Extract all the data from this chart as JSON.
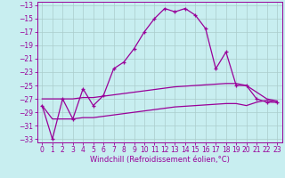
{
  "x": [
    0,
    1,
    2,
    3,
    4,
    5,
    6,
    7,
    8,
    9,
    10,
    11,
    12,
    13,
    14,
    15,
    16,
    17,
    18,
    19,
    20,
    21,
    22,
    23
  ],
  "main_line": [
    -28,
    -33,
    -27,
    -30,
    -25.5,
    -28,
    -26.5,
    -22.5,
    -21.5,
    -19.5,
    -17,
    -15,
    -13.5,
    -14,
    -13.5,
    -14.5,
    -16.5,
    -22.5,
    -20,
    -25,
    -25,
    -27,
    -27.5,
    -27.5
  ],
  "line2": [
    -27,
    -27,
    -27,
    -27,
    -26.8,
    -26.8,
    -26.6,
    -26.4,
    -26.2,
    -26.0,
    -25.8,
    -25.6,
    -25.4,
    -25.2,
    -25.1,
    -25.0,
    -24.9,
    -24.8,
    -24.7,
    -24.7,
    -25.0,
    -26.0,
    -27.0,
    -27.3
  ],
  "line3": [
    -28,
    -30,
    -30,
    -30,
    -29.8,
    -29.8,
    -29.6,
    -29.4,
    -29.2,
    -29.0,
    -28.8,
    -28.6,
    -28.4,
    -28.2,
    -28.1,
    -28.0,
    -27.9,
    -27.8,
    -27.7,
    -27.7,
    -28.0,
    -27.5,
    -27.2,
    -27.5
  ],
  "bg_color": "#c8eef0",
  "grid_color": "#aacccc",
  "line_color": "#990099",
  "xlim": [
    -0.5,
    23.5
  ],
  "ylim": [
    -33.5,
    -12.5
  ],
  "yticks": [
    -33,
    -31,
    -29,
    -27,
    -25,
    -23,
    -21,
    -19,
    -17,
    -15,
    -13
  ],
  "xticks": [
    0,
    1,
    2,
    3,
    4,
    5,
    6,
    7,
    8,
    9,
    10,
    11,
    12,
    13,
    14,
    15,
    16,
    17,
    18,
    19,
    20,
    21,
    22,
    23
  ],
  "xlabel": "Windchill (Refroidissement éolien,°C)",
  "xlabel_fontsize": 6.0,
  "tick_fontsize": 5.5,
  "line_width": 0.9,
  "marker_size": 3.5
}
